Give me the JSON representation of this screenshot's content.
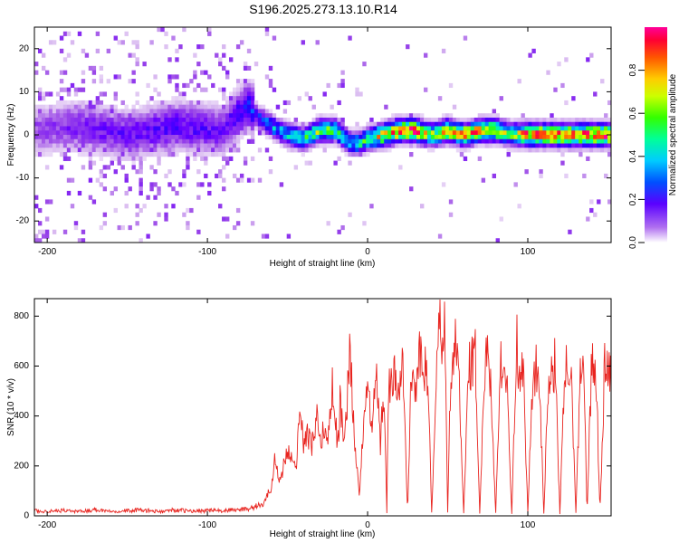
{
  "title": "S196.2025.273.13.10.R14",
  "chart_data": [
    {
      "type": "heatmap",
      "xlabel": "Height of straight line (km)",
      "ylabel": "Frequency (Hz)",
      "xlim": [
        -208,
        152
      ],
      "ylim": [
        -25,
        25
      ],
      "xticks": [
        -200,
        -100,
        0,
        100
      ],
      "yticks": [
        -20,
        -10,
        0,
        10,
        20
      ],
      "colorbar": {
        "label": "Normalized spectral amplitude",
        "range": [
          0,
          1
        ],
        "ticks": [
          "0.0",
          "0.2",
          "0.4",
          "0.6",
          "0.8"
        ],
        "tick_values": [
          0,
          0.2,
          0.4,
          0.6,
          0.8
        ],
        "colormap": [
          "#ffffff",
          "#d8b8f0",
          "#9a46e8",
          "#6a00ff",
          "#2200ff",
          "#0066ff",
          "#00ccff",
          "#00ff99",
          "#33ff00",
          "#ccff00",
          "#ffcc00",
          "#ff5500",
          "#ff0033",
          "#ff0099"
        ]
      },
      "ridge": {
        "x": [
          -208,
          -180,
          -150,
          -120,
          -90,
          -75,
          -68,
          -60,
          -50,
          -40,
          -30,
          -20,
          -10,
          -5,
          0,
          10,
          20,
          30,
          40,
          50,
          60,
          70,
          80,
          90,
          100,
          110,
          120,
          130,
          140,
          152
        ],
        "freq": [
          1,
          2,
          0,
          2,
          1,
          7,
          4,
          2,
          0,
          -1,
          1,
          1,
          -2,
          -2,
          -1,
          0,
          1,
          1,
          0,
          1,
          0,
          1,
          1,
          0,
          0,
          0,
          0,
          0,
          0,
          0
        ],
        "amplitude": [
          0.15,
          0.2,
          0.22,
          0.25,
          0.22,
          0.3,
          0.35,
          0.4,
          0.45,
          0.55,
          0.6,
          0.55,
          0.45,
          0.5,
          0.55,
          0.75,
          0.85,
          0.88,
          0.6,
          0.75,
          0.8,
          0.75,
          0.75,
          0.6,
          0.85,
          0.85,
          0.85,
          0.8,
          0.85,
          0.85
        ]
      }
    },
    {
      "type": "line",
      "xlabel": "Height of straight line (km)",
      "ylabel": "SNR (10 * v/v)",
      "xlim": [
        -208,
        152
      ],
      "ylim": [
        0,
        870
      ],
      "xticks": [
        -200,
        -100,
        0,
        100
      ],
      "yticks": [
        0,
        200,
        400,
        600,
        800
      ],
      "color": "#e8231e",
      "series": [
        {
          "name": "SNR",
          "x": [
            -208,
            -200,
            -190,
            -180,
            -170,
            -160,
            -150,
            -140,
            -130,
            -120,
            -110,
            -100,
            -90,
            -80,
            -75,
            -70,
            -65,
            -60,
            -58,
            -55,
            -50,
            -45,
            -42,
            -40,
            -37,
            -35,
            -32,
            -30,
            -27,
            -25,
            -22,
            -20,
            -18,
            -17,
            -15,
            -13,
            -11,
            -8,
            -5,
            -3,
            0,
            3,
            5,
            8,
            10,
            12,
            13,
            15,
            17,
            20,
            22,
            25,
            27,
            30,
            32,
            35,
            38,
            40,
            43,
            45,
            47,
            48,
            50,
            52,
            55,
            57,
            60,
            63,
            65,
            67,
            70,
            73,
            75,
            77,
            80,
            83,
            85,
            87,
            90,
            93,
            95,
            97,
            100,
            103,
            105,
            107,
            110,
            113,
            115,
            117,
            120,
            123,
            125,
            127,
            130,
            133,
            135,
            137,
            140,
            143,
            145,
            148,
            152
          ],
          "y": [
            20,
            18,
            22,
            17,
            25,
            19,
            21,
            23,
            16,
            24,
            18,
            22,
            20,
            25,
            30,
            35,
            45,
            120,
            220,
            140,
            260,
            180,
            420,
            290,
            330,
            260,
            410,
            310,
            350,
            280,
            520,
            350,
            300,
            500,
            240,
            450,
            700,
            260,
            80,
            330,
            560,
            300,
            620,
            290,
            500,
            10,
            540,
            500,
            580,
            470,
            610,
            10,
            560,
            500,
            640,
            600,
            540,
            10,
            560,
            760,
            620,
            870,
            10,
            590,
            700,
            540,
            10,
            600,
            610,
            680,
            10,
            560,
            760,
            500,
            10,
            640,
            580,
            550,
            10,
            700,
            540,
            610,
            10,
            550,
            580,
            600,
            10,
            560,
            540,
            620,
            10,
            570,
            600,
            560,
            10,
            610,
            580,
            10,
            640,
            520,
            10,
            600,
            580
          ]
        }
      ]
    }
  ]
}
